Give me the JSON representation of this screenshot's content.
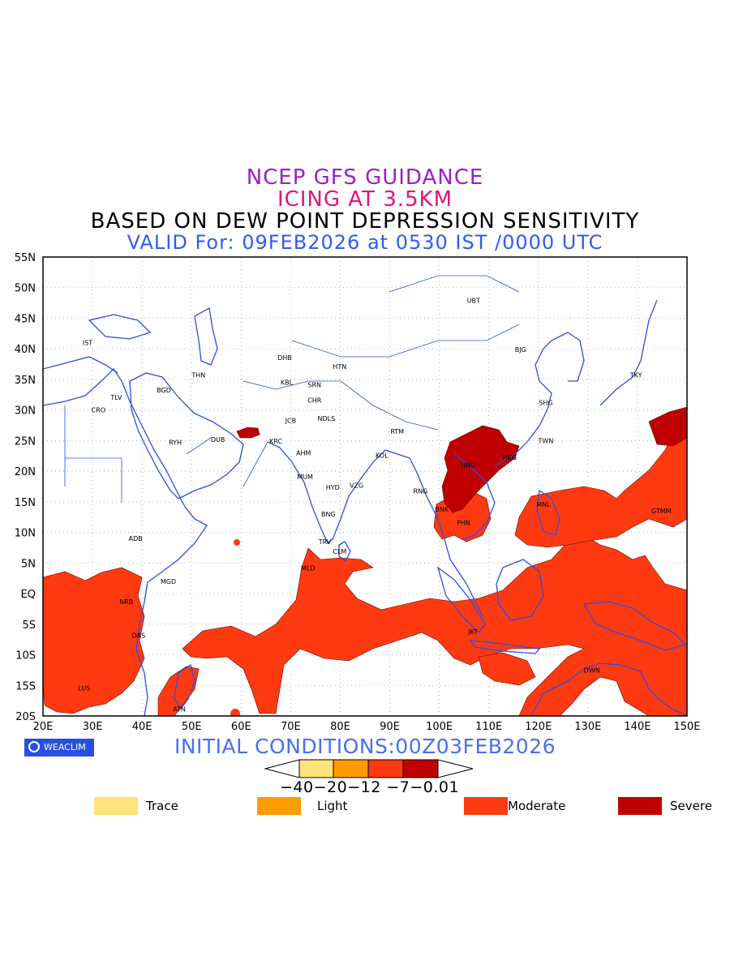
{
  "titles": {
    "line1": "NCEP GFS GUIDANCE",
    "line2": "ICING AT 3.5KM",
    "line3": "BASED ON DEW POINT DEPRESSION SENSITIVITY",
    "line4": "VALID For: 09FEB2026 at 0530 IST /0000 UTC"
  },
  "axes": {
    "lon_labels": [
      "20E",
      "30E",
      "40E",
      "50E",
      "60E",
      "70E",
      "80E",
      "90E",
      "100E",
      "110E",
      "120E",
      "130E",
      "140E",
      "150E"
    ],
    "lat_labels": [
      "55N",
      "50N",
      "45N",
      "40N",
      "35N",
      "30N",
      "25N",
      "20N",
      "15N",
      "10N",
      "5N",
      "EQ",
      "5S",
      "10S",
      "15S",
      "20S"
    ]
  },
  "cities": [
    {
      "code": "UBT"
    },
    {
      "code": "BJG"
    },
    {
      "code": "TKY"
    },
    {
      "code": "SHG"
    },
    {
      "code": "TWN"
    },
    {
      "code": "HKG"
    },
    {
      "code": "HNO"
    },
    {
      "code": "MNL"
    },
    {
      "code": "GTMM"
    },
    {
      "code": "BNK"
    },
    {
      "code": "PHN"
    },
    {
      "code": "RNG"
    },
    {
      "code": "KOL"
    },
    {
      "code": "RTM"
    },
    {
      "code": "HTN"
    },
    {
      "code": "SRN"
    },
    {
      "code": "DHB"
    },
    {
      "code": "KBL"
    },
    {
      "code": "THN"
    },
    {
      "code": "IST"
    },
    {
      "code": "TLV"
    },
    {
      "code": "CRO"
    },
    {
      "code": "BGD"
    },
    {
      "code": "RYH"
    },
    {
      "code": "DUB"
    },
    {
      "code": "KRC"
    },
    {
      "code": "AHM"
    },
    {
      "code": "JCB"
    },
    {
      "code": "CHR"
    },
    {
      "code": "NDLS"
    },
    {
      "code": "MUM"
    },
    {
      "code": "HYD"
    },
    {
      "code": "VZG"
    },
    {
      "code": "BNG"
    },
    {
      "code": "TRV"
    },
    {
      "code": "CLM"
    },
    {
      "code": "MLD"
    },
    {
      "code": "ADB"
    },
    {
      "code": "MGD"
    },
    {
      "code": "NRB"
    },
    {
      "code": "DAS"
    },
    {
      "code": "LUS"
    },
    {
      "code": "ATN"
    },
    {
      "code": "JKT"
    },
    {
      "code": "DWN"
    }
  ],
  "logo": {
    "text": "WEACLIM"
  },
  "initial_conditions": "INITIAL CONDITIONS:00Z03FEB2026",
  "colorbar": {
    "tick_text": "−40−20−12 −7−0.01",
    "colors": [
      "#ffe27a",
      "#ff9c00",
      "#ff3a10",
      "#c00000"
    ]
  },
  "legend": [
    {
      "label": "Trace",
      "color": "#ffe27a"
    },
    {
      "label": "Light",
      "color": "#ff9c00"
    },
    {
      "label": "Moderate",
      "color": "#ff3a10"
    },
    {
      "label": "Severe",
      "color": "#c00000"
    }
  ]
}
